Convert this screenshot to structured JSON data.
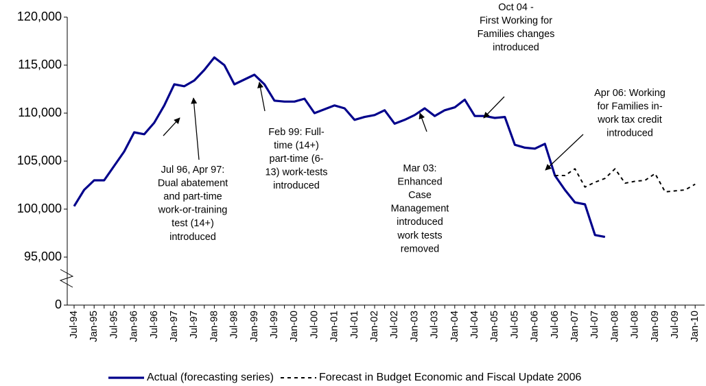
{
  "chart_data": {
    "type": "line",
    "categories": [
      "Jul-94",
      null,
      "Jan-95",
      null,
      "Jul-95",
      null,
      "Jan-96",
      null,
      "Jul-96",
      null,
      "Jan-97",
      null,
      "Jul-97",
      null,
      "Jan-98",
      null,
      "Jul-98",
      null,
      "Jan-99",
      null,
      "Jul-99",
      null,
      "Jan-00",
      null,
      "Jul-00",
      null,
      "Jan-01",
      null,
      "Jul-01",
      null,
      "Jan-02",
      null,
      "Jul-02",
      null,
      "Jan-03",
      null,
      "Jul-03",
      null,
      "Jan-04",
      null,
      "Jul-04",
      null,
      "Jan-05",
      null,
      "Jul-05",
      null,
      "Jan-06",
      null,
      "Jul-06",
      null,
      "Jan-07",
      null,
      "Jul-07",
      null,
      "Jan-08",
      null,
      "Jul-08",
      null,
      "Jan-09",
      null,
      "Jul-09",
      null,
      "Jan-10"
    ],
    "series": [
      {
        "name": "Actual (forecasting series)",
        "color": "#00008b",
        "style": "solid",
        "values": [
          100300,
          102000,
          103000,
          103000,
          104500,
          106000,
          108000,
          107800,
          109000,
          110800,
          113000,
          112800,
          113400,
          114500,
          115800,
          115000,
          113000,
          113500,
          114000,
          113000,
          111300,
          111200,
          111200,
          111500,
          110000,
          110400,
          110800,
          110500,
          109300,
          109600,
          109800,
          110300,
          108900,
          109300,
          109800,
          110500,
          109700,
          110300,
          110600,
          111400,
          109700,
          109700,
          109500,
          109600,
          106700,
          106400,
          106300,
          106800,
          103500,
          102000,
          100700,
          100500,
          97300,
          97100,
          null,
          null,
          null,
          null,
          null,
          null,
          null,
          null,
          null
        ]
      },
      {
        "name": "Forecast in Budget Economic and Fiscal Update 2006",
        "color": "#000000",
        "style": "dashed",
        "values": [
          null,
          null,
          null,
          null,
          null,
          null,
          null,
          null,
          null,
          null,
          null,
          null,
          null,
          null,
          null,
          null,
          null,
          null,
          null,
          null,
          null,
          null,
          null,
          null,
          null,
          null,
          null,
          null,
          null,
          null,
          null,
          null,
          null,
          null,
          null,
          null,
          null,
          null,
          null,
          null,
          null,
          null,
          null,
          null,
          null,
          null,
          null,
          null,
          103500,
          103500,
          104200,
          102300,
          102800,
          103200,
          104200,
          102700,
          102900,
          103000,
          103700,
          101800,
          101900,
          102000,
          102600
        ]
      }
    ],
    "ylim": [
      0,
      120000
    ],
    "y_break": [
      0,
      90000
    ],
    "yticks": [
      0,
      {
        "value": 95000,
        "label": "95,000"
      },
      {
        "value": 100000,
        "label": "100,000"
      },
      {
        "value": 105000,
        "label": "105,000"
      },
      {
        "value": 110000,
        "label": "110,000"
      },
      {
        "value": 115000,
        "label": "115,000"
      },
      {
        "value": 120000,
        "label": "120,000"
      }
    ],
    "legend": "bottom",
    "annotations": [
      {
        "lines": [
          "Jul 96, Apr 97:",
          "Dual abatement",
          "and part-time",
          "work-or-training",
          "test (14+)",
          "introduced"
        ]
      },
      {
        "lines": [
          "Feb 99: Full-",
          "time (14+)",
          "part-time (6-",
          "13) work-tests",
          "introduced"
        ]
      },
      {
        "lines": [
          "Mar 03:",
          "Enhanced",
          "Case",
          "Management",
          "introduced",
          "work tests",
          "removed"
        ]
      },
      {
        "lines": [
          "Oct 04 -",
          "First Working for",
          "Families changes",
          "introduced"
        ]
      },
      {
        "lines": [
          "Apr 06: Working",
          "for Families in-",
          "work tax credit",
          "introduced"
        ]
      }
    ]
  }
}
